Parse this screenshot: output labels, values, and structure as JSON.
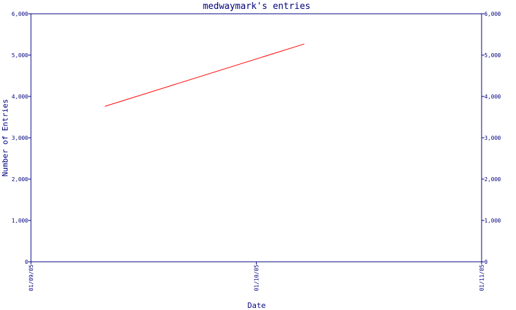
{
  "chart_data": {
    "type": "line",
    "title": "medwaymark's entries",
    "xlabel": "Date",
    "ylabel": "Number of Entries",
    "x_tick_labels": [
      "01/09/05",
      "01/10/05",
      "01/11/05"
    ],
    "y_tick_labels": [
      "0",
      "1,000",
      "2,000",
      "3,000",
      "4,000",
      "5,000",
      "6,000"
    ],
    "ylim": [
      0,
      6000
    ],
    "xlim": [
      "2005-09-01",
      "2005-11-01"
    ],
    "grid": false,
    "series": [
      {
        "color": "#ff0000",
        "points": [
          {
            "x": "2005-09-11",
            "y": 3760
          },
          {
            "x": "2005-10-08",
            "y": 5270
          }
        ]
      }
    ],
    "axis_color": "#000080"
  }
}
